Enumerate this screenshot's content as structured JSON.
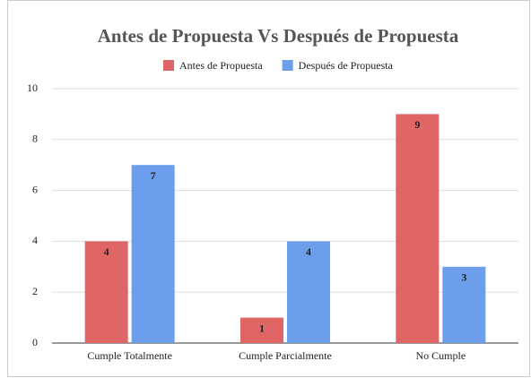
{
  "chart_data": {
    "type": "bar",
    "title": "Antes de Propuesta Vs Después de Propuesta",
    "categories": [
      "Cumple Totalmente",
      "Cumple Parcialmente",
      "No Cumple"
    ],
    "series": [
      {
        "name": "Antes de Propuesta",
        "color": "#e06666",
        "values": [
          4,
          1,
          9
        ]
      },
      {
        "name": "Después de Propuesta",
        "color": "#6d9eeb",
        "values": [
          7,
          4,
          3
        ]
      }
    ],
    "ylim": [
      0,
      10
    ],
    "yticks": [
      0,
      2,
      4,
      6,
      8,
      10
    ],
    "grid": true,
    "legend": "top"
  }
}
